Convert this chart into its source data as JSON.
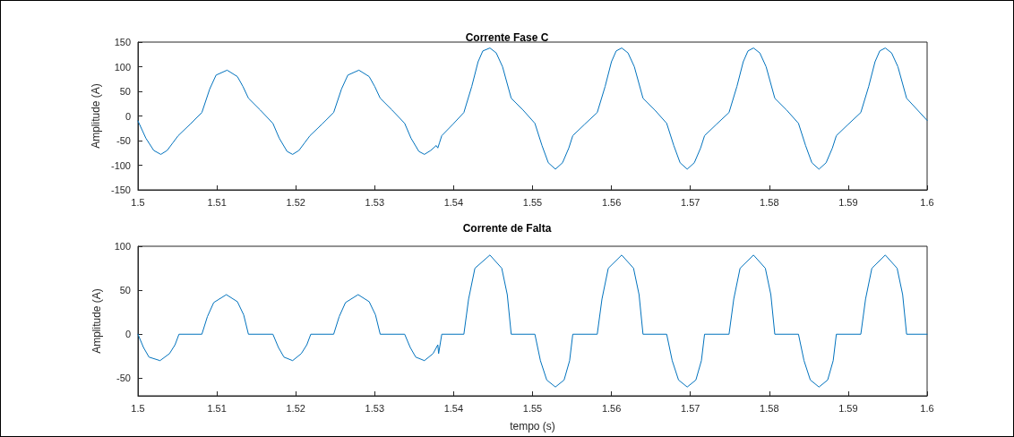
{
  "chart_data": [
    {
      "type": "line",
      "title": "Corrente Fase C",
      "ylabel": "Amplitude (A)",
      "xlim": [
        1.5,
        1.6
      ],
      "xticks": [
        1.5,
        1.51,
        1.52,
        1.53,
        1.54,
        1.55,
        1.56,
        1.57,
        1.58,
        1.59,
        1.6
      ],
      "ylim": [
        -150,
        150
      ],
      "yticks": [
        -150,
        -100,
        -50,
        0,
        50,
        100,
        150
      ],
      "grid": false,
      "marker": "none",
      "line_style": "solid",
      "series": [
        {
          "color": "#0072bd",
          "x": [
            1.5,
            1.501,
            1.502,
            1.5029,
            1.5037,
            1.5044,
            1.5051,
            1.5066,
            1.5081,
            1.5091,
            1.5099,
            1.5113,
            1.5126,
            1.5133,
            1.514,
            1.5155,
            1.5171,
            1.5179,
            1.5189,
            1.5196,
            1.5204,
            1.5211,
            1.5218,
            1.5233,
            1.5248,
            1.5258,
            1.5266,
            1.528,
            1.5293,
            1.53,
            1.5307,
            1.5322,
            1.5338,
            1.5346,
            1.5356,
            1.5363,
            1.5371,
            1.5378,
            1.538,
            1.5382,
            1.5385,
            1.5399,
            1.5413,
            1.5423,
            1.5431,
            1.5437,
            1.5446,
            1.5454,
            1.5462,
            1.5473,
            1.5488,
            1.5503,
            1.5512,
            1.552,
            1.5529,
            1.5538,
            1.5546,
            1.5551,
            1.5566,
            1.5582,
            1.5592,
            1.56,
            1.5606,
            1.5613,
            1.5621,
            1.5629,
            1.564,
            1.5655,
            1.567,
            1.5679,
            1.5687,
            1.5696,
            1.5705,
            1.5713,
            1.5718,
            1.5733,
            1.5749,
            1.5759,
            1.5767,
            1.5773,
            1.578,
            1.5788,
            1.5796,
            1.5807,
            1.5822,
            1.5837,
            1.5846,
            1.5854,
            1.5863,
            1.5872,
            1.588,
            1.5885,
            1.59,
            1.5916,
            1.5926,
            1.5934,
            1.594,
            1.5947,
            1.5955,
            1.5963,
            1.5974,
            1.6
          ],
          "values": [
            -10,
            -45,
            -70,
            -78,
            -70,
            -55,
            -40,
            -17,
            7,
            55,
            83,
            93,
            80,
            60,
            36,
            12,
            -15,
            -45,
            -72,
            -78,
            -70,
            -55,
            -40,
            -17,
            7,
            55,
            83,
            93,
            80,
            60,
            36,
            12,
            -15,
            -45,
            -72,
            -78,
            -70,
            -60,
            -65,
            -55,
            -40,
            -17,
            7,
            60,
            110,
            132,
            138,
            128,
            100,
            36,
            12,
            -15,
            -60,
            -95,
            -108,
            -95,
            -65,
            -40,
            -17,
            7,
            60,
            110,
            132,
            138,
            128,
            100,
            36,
            12,
            -15,
            -60,
            -95,
            -108,
            -95,
            -65,
            -40,
            -17,
            7,
            60,
            110,
            132,
            138,
            128,
            100,
            36,
            12,
            -15,
            -60,
            -95,
            -108,
            -95,
            -65,
            -40,
            -17,
            7,
            60,
            110,
            132,
            138,
            128,
            100,
            36,
            -9
          ]
        }
      ]
    },
    {
      "type": "line",
      "title": "Corrente de Falta",
      "xlabel": "tempo (s)",
      "ylabel": "Amplitude (A)",
      "xlim": [
        1.5,
        1.6
      ],
      "xticks": [
        1.5,
        1.51,
        1.52,
        1.53,
        1.54,
        1.55,
        1.56,
        1.57,
        1.58,
        1.59,
        1.6
      ],
      "ylim": [
        -70,
        100
      ],
      "yticks": [
        -50,
        0,
        50,
        100
      ],
      "grid": false,
      "marker": "none",
      "line_style": "solid",
      "series": [
        {
          "color": "#0072bd",
          "x": [
            1.5,
            1.5007,
            1.5014,
            1.5028,
            1.504,
            1.5047,
            1.5052,
            1.5081,
            1.5088,
            1.5096,
            1.5112,
            1.5126,
            1.5134,
            1.514,
            1.5171,
            1.5178,
            1.5185,
            1.5196,
            1.5207,
            1.5214,
            1.5219,
            1.5248,
            1.5255,
            1.5263,
            1.5279,
            1.5293,
            1.5301,
            1.5307,
            1.5338,
            1.5345,
            1.5352,
            1.5363,
            1.5374,
            1.538,
            1.5381,
            1.5385,
            1.5413,
            1.5419,
            1.5427,
            1.5446,
            1.5461,
            1.5468,
            1.5473,
            1.5503,
            1.551,
            1.5518,
            1.5529,
            1.554,
            1.5547,
            1.5551,
            1.5582,
            1.5588,
            1.5596,
            1.5613,
            1.5628,
            1.5635,
            1.564,
            1.567,
            1.5677,
            1.5685,
            1.5696,
            1.5707,
            1.5714,
            1.5718,
            1.5749,
            1.5755,
            1.5763,
            1.578,
            1.5795,
            1.5802,
            1.5807,
            1.5837,
            1.5844,
            1.5852,
            1.5863,
            1.5874,
            1.5881,
            1.5885,
            1.5916,
            1.5922,
            1.593,
            1.5947,
            1.5962,
            1.5969,
            1.5974,
            1.6
          ],
          "values": [
            0,
            -15,
            -26,
            -30,
            -22,
            -12,
            0,
            0,
            20,
            36,
            45,
            37,
            22,
            0,
            0,
            -15,
            -26,
            -30,
            -22,
            -12,
            0,
            0,
            20,
            36,
            45,
            37,
            22,
            0,
            0,
            -15,
            -26,
            -30,
            -22,
            -12,
            -22,
            0,
            0,
            40,
            75,
            90,
            75,
            45,
            0,
            0,
            -30,
            -52,
            -60,
            -52,
            -30,
            0,
            0,
            40,
            75,
            90,
            75,
            45,
            0,
            0,
            -30,
            -52,
            -60,
            -52,
            -30,
            0,
            0,
            40,
            75,
            90,
            75,
            45,
            0,
            0,
            -30,
            -52,
            -60,
            -52,
            -30,
            0,
            0,
            40,
            75,
            90,
            75,
            45,
            0,
            0
          ]
        }
      ]
    }
  ]
}
